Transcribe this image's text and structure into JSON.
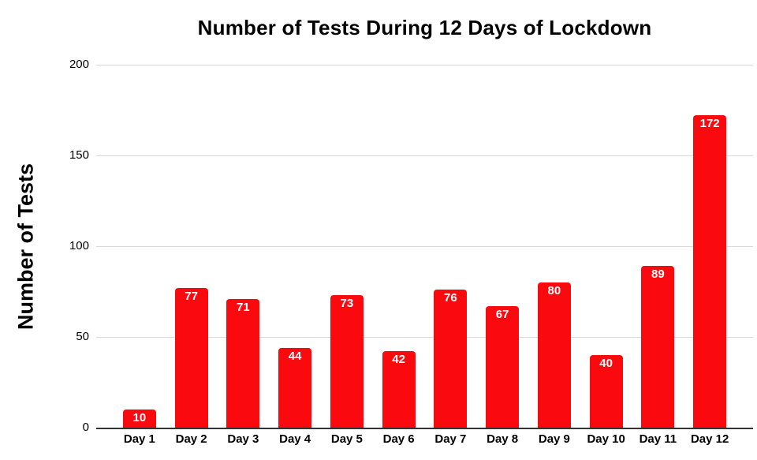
{
  "chart_data": {
    "type": "bar",
    "title": "Number of Tests During 12 Days of Lockdown",
    "xlabel": "",
    "ylabel": "Number of Tests",
    "categories": [
      "Day 1",
      "Day 2",
      "Day 3",
      "Day 4",
      "Day 5",
      "Day 6",
      "Day 7",
      "Day 8",
      "Day 9",
      "Day 10",
      "Day 11",
      "Day 12"
    ],
    "values": [
      10,
      77,
      71,
      44,
      73,
      42,
      76,
      67,
      80,
      40,
      89,
      172
    ],
    "ylim": [
      0,
      200
    ],
    "yticks": [
      0,
      50,
      100,
      150,
      200
    ],
    "grid": true,
    "legend": false,
    "data_labels": true,
    "colors": {
      "bar": "#fa0a0f",
      "bar_label": "#ffffff",
      "gridline": "#d9d9d9",
      "axis": "#333333",
      "text": "#000000",
      "background": "#ffffff"
    }
  }
}
